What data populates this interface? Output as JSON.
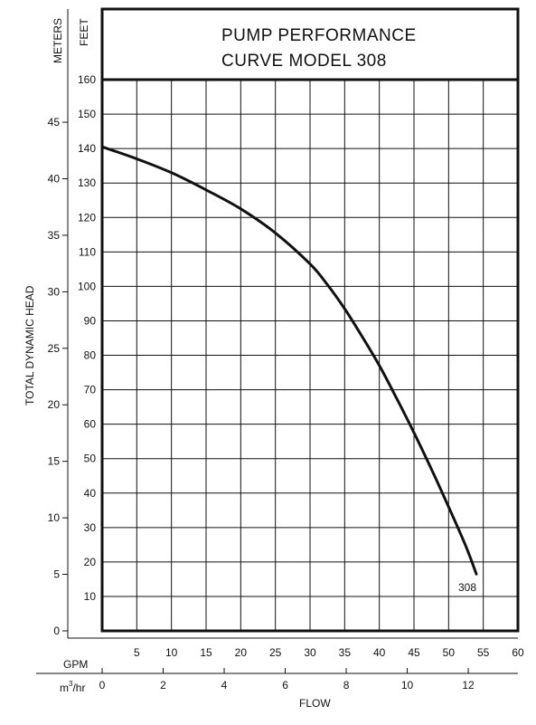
{
  "chart_data": {
    "type": "line",
    "title_lines": [
      "PUMP PERFORMANCE",
      "CURVE MODEL 308"
    ],
    "ylabel": "TOTAL DYNAMIC HEAD",
    "xlabel": "FLOW",
    "y_units": {
      "meters": "METERS",
      "feet": "FEET"
    },
    "x_units": {
      "gpm": "GPM",
      "m3hr_base": "m",
      "m3hr_sup": "3",
      "m3hr_rest": "/hr"
    },
    "feet_ticks": [
      10,
      20,
      30,
      40,
      50,
      60,
      70,
      80,
      90,
      100,
      110,
      120,
      130,
      140,
      150,
      160
    ],
    "meters_ticks": [
      0,
      5,
      10,
      15,
      20,
      25,
      30,
      35,
      40,
      45
    ],
    "gpm_ticks": [
      5,
      10,
      15,
      20,
      25,
      30,
      35,
      40,
      45,
      50,
      55,
      60
    ],
    "m3hr_ticks": [
      0,
      2,
      4,
      6,
      8,
      10,
      12
    ],
    "xlim_gpm": [
      0,
      60
    ],
    "ylim_feet": [
      0,
      160
    ],
    "grid": true,
    "series": [
      {
        "name": "308",
        "x": [
          0,
          5,
          10,
          15,
          20,
          25,
          30,
          32.5,
          35,
          37.5,
          40,
          42.5,
          45,
          47.5,
          50,
          52.5,
          54
        ],
        "y": [
          140.5,
          137,
          133,
          128,
          122.5,
          115.5,
          106.5,
          100.5,
          93.5,
          85.5,
          77,
          67.5,
          57.5,
          47,
          36,
          24.5,
          16.5
        ]
      }
    ]
  }
}
